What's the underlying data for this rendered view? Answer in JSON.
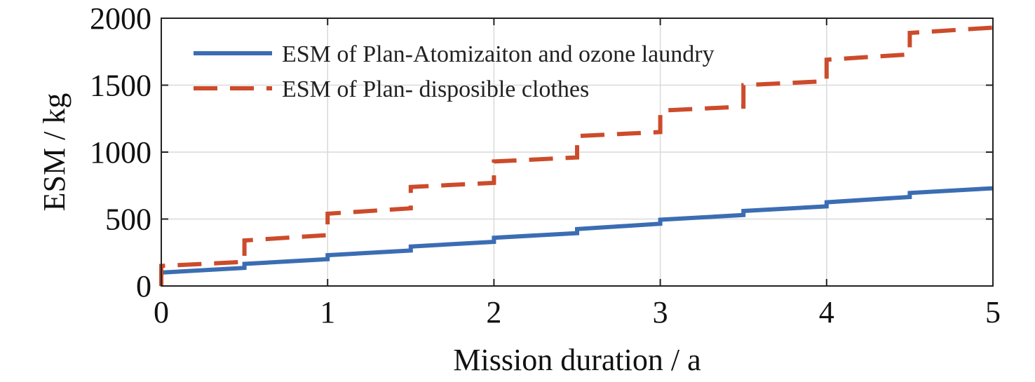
{
  "chart_data": {
    "type": "line",
    "title": "",
    "xlabel": "Mission duration / a",
    "ylabel": "ESM / kg",
    "xlim": [
      0,
      5
    ],
    "ylim": [
      0,
      2000
    ],
    "xticks": [
      0,
      1,
      2,
      3,
      4,
      5
    ],
    "yticks": [
      0,
      500,
      1000,
      1500,
      2000
    ],
    "xtick_labels": [
      "0",
      "1",
      "2",
      "3",
      "4",
      "5"
    ],
    "ytick_labels": [
      "0",
      "500",
      "1000",
      "1500",
      "2000"
    ],
    "grid": true,
    "legend_position": "top-left",
    "series": [
      {
        "name": "ESM of Plan-Atomizaiton and ozone laundry",
        "color": "#3b6db3",
        "style": "solid",
        "x": [
          0,
          0.5,
          0.5,
          1,
          1,
          1.5,
          1.5,
          2,
          2,
          2.5,
          2.5,
          3,
          3,
          3.5,
          3.5,
          4,
          4,
          4.5,
          4.5,
          5
        ],
        "y": [
          100,
          135,
          165,
          200,
          230,
          265,
          295,
          330,
          360,
          395,
          425,
          465,
          495,
          530,
          560,
          595,
          625,
          665,
          695,
          730
        ]
      },
      {
        "name": "ESM of Plan- disposible clothes",
        "color": "#cc4b2b",
        "style": "dashed",
        "x": [
          0,
          0,
          0.5,
          0.5,
          1,
          1,
          1.5,
          1.5,
          2,
          2,
          2.5,
          2.5,
          3,
          3,
          3.5,
          3.5,
          4,
          4,
          4.5,
          4.5,
          5
        ],
        "y": [
          0,
          150,
          180,
          340,
          380,
          540,
          580,
          740,
          770,
          930,
          960,
          1120,
          1150,
          1310,
          1340,
          1500,
          1530,
          1690,
          1730,
          1890,
          1930
        ]
      }
    ]
  }
}
